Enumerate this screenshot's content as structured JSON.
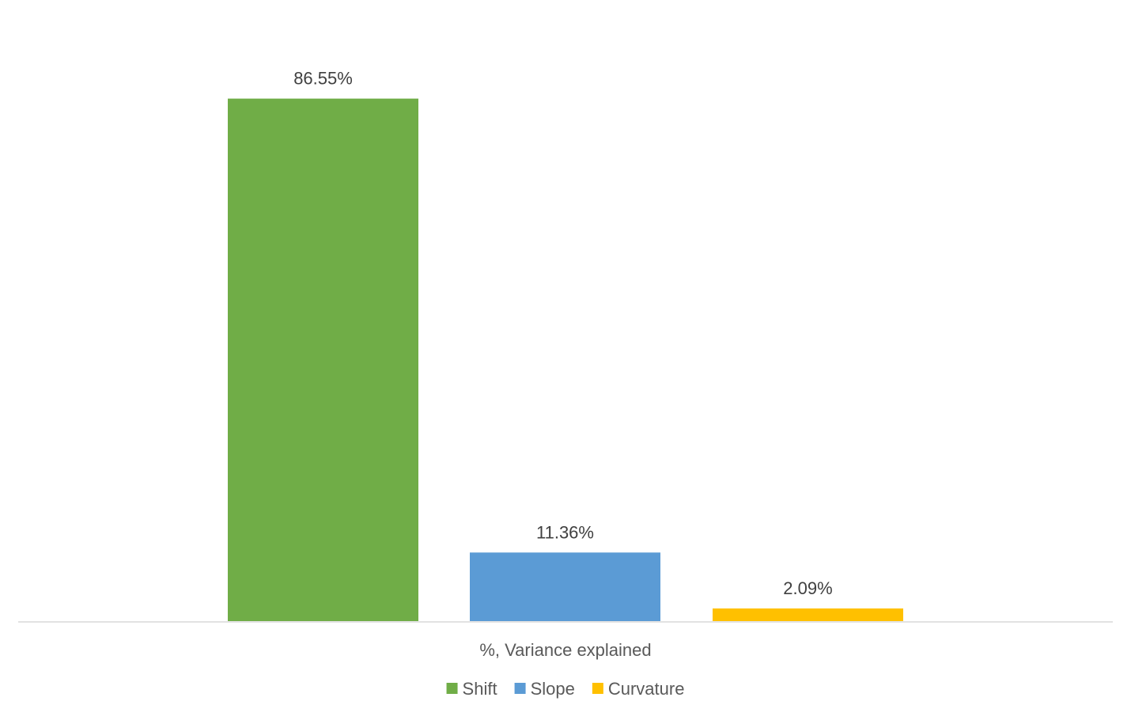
{
  "chart_data": {
    "type": "bar",
    "title": "",
    "xlabel": "",
    "ylabel": "",
    "categories": [
      "%, Variance explained"
    ],
    "ylim": [
      0,
      100
    ],
    "grid": false,
    "legend_position": "bottom",
    "value_suffix": "%",
    "series": [
      {
        "name": "Shift",
        "values": [
          86.55
        ],
        "color": "#70AD47",
        "label": "86.55%"
      },
      {
        "name": "Slope",
        "values": [
          11.36
        ],
        "color": "#5B9BD5",
        "label": "11.36%"
      },
      {
        "name": "Curvature",
        "values": [
          2.09
        ],
        "color": "#FFC000",
        "label": "2.09%"
      }
    ]
  }
}
